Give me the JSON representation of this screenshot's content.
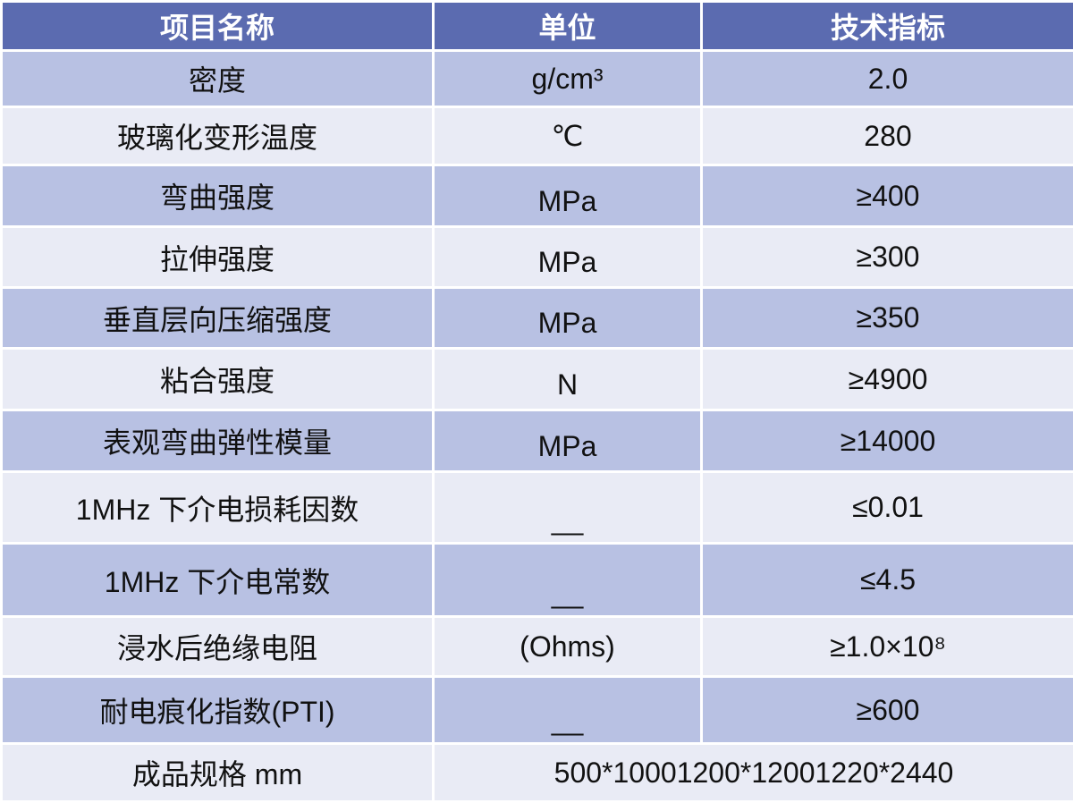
{
  "header": {
    "name": "项目名称",
    "unit": "单位",
    "spec": "技术指标"
  },
  "rows": [
    {
      "name": "密度",
      "unit": "g/cm³",
      "spec": "2.0"
    },
    {
      "name": "玻璃化变形温度",
      "unit": "℃",
      "spec": "280"
    },
    {
      "name": "弯曲强度",
      "unit": "MPa",
      "spec": "≥400"
    },
    {
      "name": "拉伸强度",
      "unit": "MPa",
      "spec": "≥300"
    },
    {
      "name": "垂直层向压缩强度",
      "unit": "MPa",
      "spec": "≥350"
    },
    {
      "name": "粘合强度",
      "unit": "N",
      "spec": "≥4900"
    },
    {
      "name": "表观弯曲弹性模量",
      "unit": "MPa",
      "spec": "≥14000"
    },
    {
      "name": "1MHz 下介电损耗因数",
      "unit": "__",
      "spec": "≤0.01"
    },
    {
      "name": "1MHz 下介电常数",
      "unit": "__",
      "spec": "≤4.5"
    },
    {
      "name": "浸水后绝缘电阻",
      "unit": "(Ohms)",
      "spec": "≥1.0×10⁸"
    },
    {
      "name": "耐电痕化指数(PTI)",
      "unit": "__",
      "spec": "≥600"
    }
  ],
  "footer": {
    "name": "成品规格 mm",
    "spec": "500*10001200*12001220*2440"
  },
  "colors": {
    "header": "#5b6bb0",
    "row_dark": "#b8c1e3",
    "row_light": "#e9ebf5"
  }
}
